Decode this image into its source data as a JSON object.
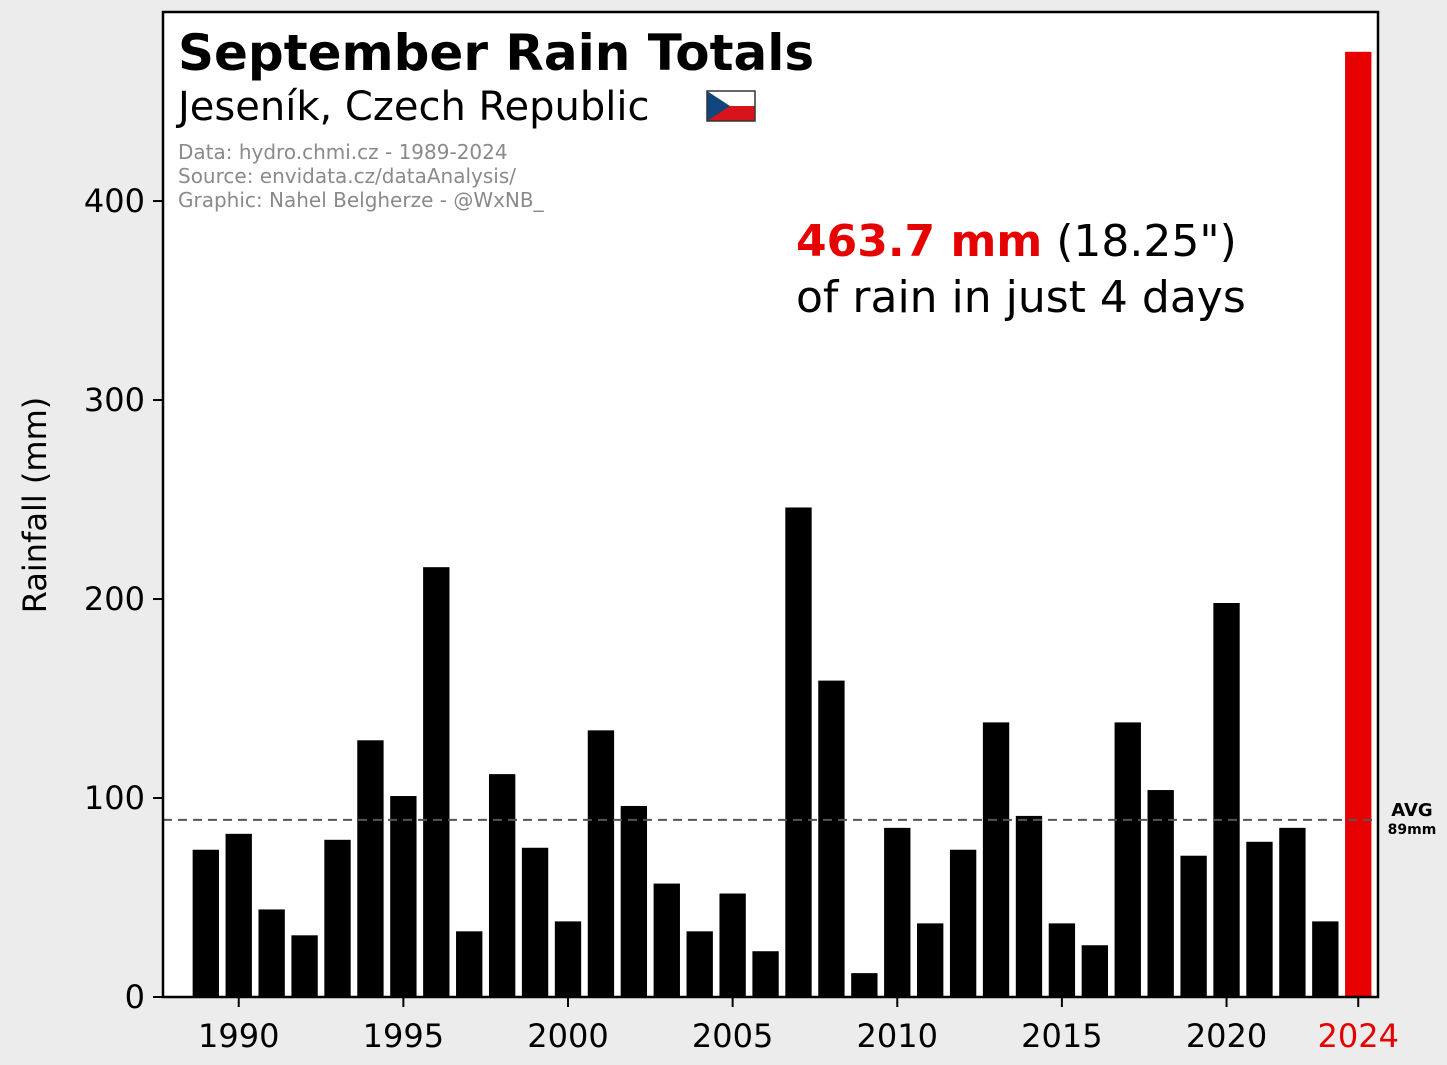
{
  "chart_data": {
    "type": "bar",
    "title": "September Rain Totals",
    "subtitle": "Jeseník, Czech Republic",
    "flag_icon": "czech-flag-icon",
    "credits": [
      "Data: hydro.chmi.cz - 1989-2024",
      "Source: envidata.cz/dataAnalysis/",
      "Graphic: Nahel Belgherze - @WxNB_"
    ],
    "ylabel": "Rainfall (mm)",
    "xlabel": "",
    "ylim": [
      0,
      495
    ],
    "xlim": [
      1987.7,
      2024.6
    ],
    "y_ticks": [
      0,
      100,
      200,
      300,
      400
    ],
    "x_ticks": [
      1990,
      1995,
      2000,
      2005,
      2010,
      2015,
      2020,
      2024
    ],
    "highlight_tick": 2024,
    "grid": false,
    "x": [
      1989,
      1990,
      1991,
      1992,
      1993,
      1994,
      1995,
      1996,
      1997,
      1998,
      1999,
      2000,
      2001,
      2002,
      2003,
      2004,
      2005,
      2006,
      2007,
      2008,
      2009,
      2010,
      2011,
      2012,
      2013,
      2014,
      2015,
      2016,
      2017,
      2018,
      2019,
      2020,
      2021,
      2022,
      2023,
      2024
    ],
    "values": [
      74,
      82,
      44,
      31,
      79,
      129,
      101,
      216,
      33,
      112,
      75,
      38,
      134,
      96,
      57,
      33,
      52,
      23,
      246,
      159,
      12,
      85,
      37,
      74,
      138,
      91,
      37,
      26,
      138,
      104,
      71,
      198,
      78,
      85,
      38,
      475
    ],
    "bar_color": "#000000",
    "highlight_color": "#e60000",
    "average": {
      "value": 89,
      "label": "AVG",
      "sublabel": "89mm"
    },
    "annotation": {
      "value_text": "463.7 mm",
      "inch_text": "(18.25\")",
      "line2": "of rain in just 4 days"
    }
  }
}
